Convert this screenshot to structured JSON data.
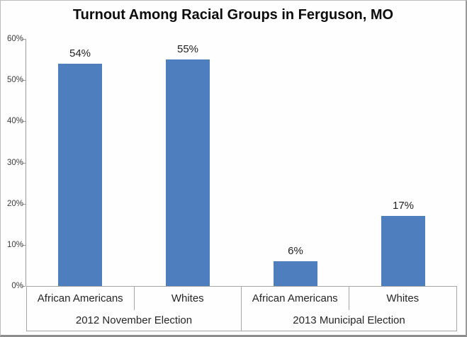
{
  "chart_data": {
    "type": "bar",
    "title": "Turnout Among Racial Groups in Ferguson, MO",
    "xlabel": "",
    "ylabel": "",
    "ylim": [
      0,
      60
    ],
    "ytick_values": [
      0,
      10,
      20,
      30,
      40,
      50,
      60
    ],
    "ytick_labels": [
      "0%",
      "10%",
      "20%",
      "30%",
      "40%",
      "50%",
      "60%"
    ],
    "grid": false,
    "legend": false,
    "bar_color": "#4e7ebe",
    "groups": [
      {
        "label": "2012 November Election",
        "categories": [
          "African Americans",
          "Whites"
        ],
        "values": [
          54,
          55
        ],
        "data_labels": [
          "54%",
          "55%"
        ]
      },
      {
        "label": "2013 Municipal Election",
        "categories": [
          "African Americans",
          "Whites"
        ],
        "values": [
          6,
          17
        ],
        "data_labels": [
          "6%",
          "17%"
        ]
      }
    ]
  }
}
